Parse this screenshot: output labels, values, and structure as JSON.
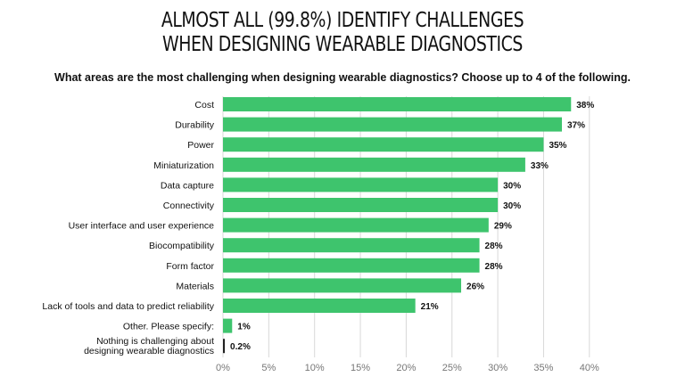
{
  "header": {
    "title_line1": "ALMOST ALL (99.8%) IDENTIFY CHALLENGES",
    "title_line2": "WHEN DESIGNING WEARABLE DIAGNOSTICS",
    "subtitle": "What areas are the most challenging when designing wearable diagnostics? Choose up to 4 of the following."
  },
  "chart_data": {
    "type": "bar",
    "orientation": "horizontal",
    "categories": [
      "Cost",
      "Durability",
      "Power",
      "Miniaturization",
      "Data capture",
      "Connectivity",
      "User interface and user experience",
      "Biocompatibility",
      "Form factor",
      "Materials",
      "Lack of tools and data to predict reliability",
      "Other. Please specify:",
      [
        "Nothing is challenging about",
        "designing wearable diagnostics"
      ]
    ],
    "values": [
      38,
      37,
      35,
      33,
      30,
      30,
      29,
      28,
      28,
      26,
      21,
      1,
      0.2
    ],
    "value_labels": [
      "38%",
      "37%",
      "35%",
      "33%",
      "30%",
      "30%",
      "29%",
      "28%",
      "28%",
      "26%",
      "21%",
      "1%",
      "0.2%"
    ],
    "xlim": [
      0,
      40
    ],
    "xticks": [
      0,
      5,
      10,
      15,
      20,
      25,
      30,
      35,
      40
    ],
    "xtick_labels": [
      "0%",
      "5%",
      "10%",
      "15%",
      "20%",
      "25%",
      "30%",
      "35%",
      "40%"
    ],
    "bar_color": "#3ec46d",
    "last_bar_color": "#222222",
    "grid": true,
    "grid_color": "#d8d8d8"
  }
}
